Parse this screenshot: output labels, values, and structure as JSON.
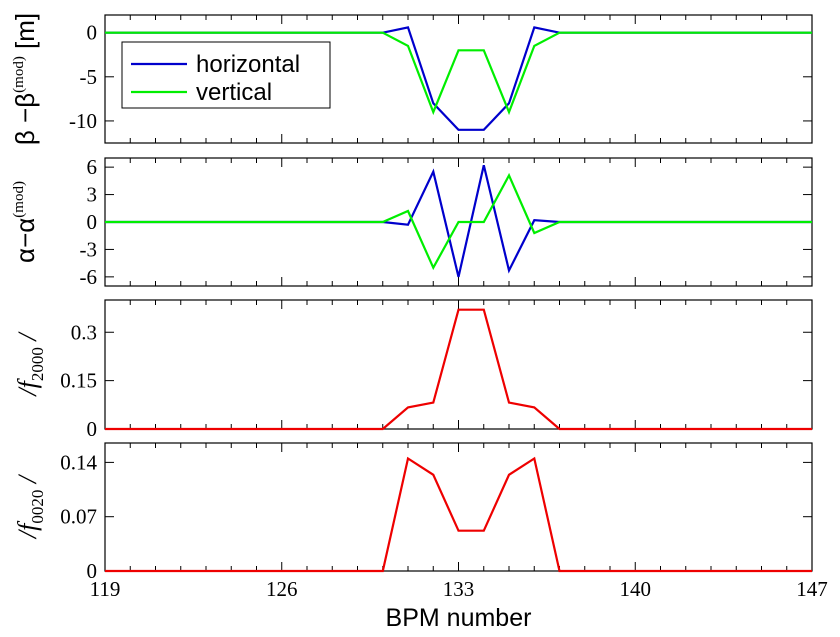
{
  "chart_data": [
    {
      "type": "line",
      "ylabel": {
        "base": "β −β",
        "sup": "(mod)",
        "unit": " [m]"
      },
      "xlim": [
        119,
        147
      ],
      "ylim": [
        -12.5,
        2
      ],
      "yticks": [
        0,
        -5,
        -10
      ],
      "x": [
        119,
        120,
        121,
        122,
        123,
        124,
        125,
        126,
        127,
        128,
        129,
        130,
        131,
        132,
        133,
        134,
        135,
        136,
        137,
        138,
        139,
        140,
        141,
        142,
        143,
        144,
        145,
        146,
        147
      ],
      "series": [
        {
          "name": "horizontal",
          "color": "#0000cc",
          "values": [
            0,
            0,
            0,
            0,
            0,
            0,
            0,
            0,
            0,
            0,
            0,
            0,
            0.6,
            -8,
            -11,
            -11,
            -8,
            0.6,
            0,
            0,
            0,
            0,
            0,
            0,
            0,
            0,
            0,
            0,
            0
          ]
        },
        {
          "name": "vertical",
          "color": "#00ee00",
          "values": [
            0,
            0,
            0,
            0,
            0,
            0,
            0,
            0,
            0,
            0,
            0,
            0,
            -1.5,
            -9,
            -2,
            -2,
            -9,
            -1.5,
            0,
            0,
            0,
            0,
            0,
            0,
            0,
            0,
            0,
            0,
            0
          ]
        }
      ],
      "legend": {
        "position": "top-left",
        "labels": [
          "horizontal",
          "vertical"
        ]
      }
    },
    {
      "type": "line",
      "ylabel": {
        "base": "α−α",
        "sup": "(mod)"
      },
      "xlim": [
        119,
        147
      ],
      "ylim": [
        -7,
        7
      ],
      "yticks": [
        6,
        3,
        0,
        -3,
        -6
      ],
      "tick_labels": [
        "6",
        "3",
        "0",
        "-3",
        "-6"
      ],
      "x": [
        119,
        120,
        121,
        122,
        123,
        124,
        125,
        126,
        127,
        128,
        129,
        130,
        131,
        132,
        133,
        134,
        135,
        136,
        137,
        138,
        139,
        140,
        141,
        142,
        143,
        144,
        145,
        146,
        147
      ],
      "series": [
        {
          "name": "horizontal",
          "color": "#0000cc",
          "values": [
            0,
            0,
            0,
            0,
            0,
            0,
            0,
            0,
            0,
            0,
            0,
            0,
            -0.3,
            5.5,
            -6,
            6.2,
            -5.3,
            0.2,
            0,
            0,
            0,
            0,
            0,
            0,
            0,
            0,
            0,
            0,
            0
          ]
        },
        {
          "name": "vertical",
          "color": "#00ee00",
          "values": [
            0,
            0,
            0,
            0,
            0,
            0,
            0,
            0,
            0,
            0,
            0,
            0,
            1.2,
            -5,
            0,
            0,
            5.1,
            -1.2,
            0,
            0,
            0,
            0,
            0,
            0,
            0,
            0,
            0,
            0,
            0
          ]
        }
      ]
    },
    {
      "type": "line",
      "ylabel": {
        "pre": "/f",
        "sub": "2000",
        "post": " /"
      },
      "xlim": [
        119,
        147
      ],
      "ylim": [
        0,
        0.4
      ],
      "yticks": [
        0,
        0.15,
        0.3
      ],
      "tick_labels": [
        "0",
        "0.15",
        "0.3"
      ],
      "x": [
        119,
        120,
        121,
        122,
        123,
        124,
        125,
        126,
        127,
        128,
        129,
        130,
        131,
        132,
        133,
        134,
        135,
        136,
        137,
        138,
        139,
        140,
        141,
        142,
        143,
        144,
        145,
        146,
        147
      ],
      "series": [
        {
          "color": "#ee0000",
          "values": [
            0,
            0,
            0,
            0,
            0,
            0,
            0,
            0,
            0,
            0,
            0,
            0,
            0.067,
            0.082,
            0.37,
            0.37,
            0.082,
            0.067,
            0,
            0,
            0,
            0,
            0,
            0,
            0,
            0,
            0,
            0,
            0
          ]
        }
      ]
    },
    {
      "type": "line",
      "xlabel": "BPM number",
      "ylabel": {
        "pre": "/f",
        "sub": "0020",
        "post": " /"
      },
      "xlim": [
        119,
        147
      ],
      "ylim": [
        0,
        0.165
      ],
      "yticks": [
        0,
        0.07,
        0.14
      ],
      "tick_labels": [
        "0",
        "0.07",
        "0.14"
      ],
      "xticks": [
        119,
        126,
        133,
        140,
        147
      ],
      "x": [
        119,
        120,
        121,
        122,
        123,
        124,
        125,
        126,
        127,
        128,
        129,
        130,
        131,
        132,
        133,
        134,
        135,
        136,
        137,
        138,
        139,
        140,
        141,
        142,
        143,
        144,
        145,
        146,
        147
      ],
      "series": [
        {
          "color": "#ee0000",
          "values": [
            0,
            0,
            0,
            0,
            0,
            0,
            0,
            0,
            0,
            0,
            0,
            0,
            0.145,
            0.124,
            0.052,
            0.052,
            0.124,
            0.145,
            0,
            0,
            0,
            0,
            0,
            0,
            0,
            0,
            0,
            0,
            0
          ]
        }
      ]
    }
  ]
}
